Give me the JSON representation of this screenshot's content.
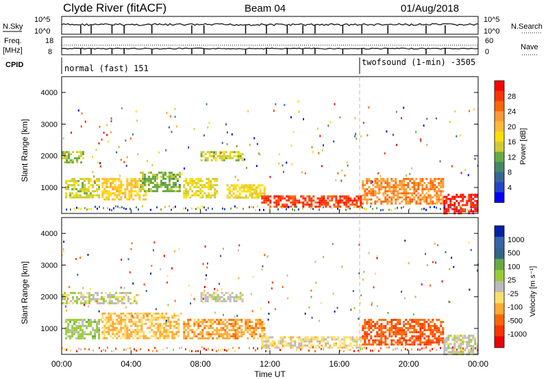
{
  "header": {
    "station": "Clyde River (fitACF)",
    "beam": "Beam 04",
    "date": "01/Aug/2018"
  },
  "aux_panels": {
    "nsky_label": "N.Sky",
    "nsky_ticks": [
      "10^5",
      "10^0"
    ],
    "nsearch_label": "N.Search",
    "nsearch_ticks": [
      "10^5",
      "10^0"
    ],
    "freq_label_1": "Freq.",
    "freq_label_2": "[MHz]",
    "freq_ticks": [
      "18",
      "8"
    ],
    "nave_label": "Nave",
    "nave_ticks": [
      "60",
      "0"
    ],
    "cpid_label": "CPID",
    "cpid_segments": [
      {
        "text": "normal (fast) 151",
        "start_hour": 0
      },
      {
        "text": "twofsound (1-min) -3505",
        "start_hour": 17.3
      }
    ]
  },
  "x_axis": {
    "label": "Time UT",
    "ticks": [
      "00:00",
      "04:00",
      "08:00",
      "12:00",
      "16:00",
      "20:00",
      "00:00"
    ]
  },
  "power_colorbar": {
    "label": "Power [dB]",
    "ticks": [
      "28",
      "24",
      "20",
      "16",
      "12",
      "8",
      "4"
    ],
    "colors": [
      "#ff0000",
      "#ff3300",
      "#ff6600",
      "#ff9933",
      "#ffbb33",
      "#ffdd00",
      "#cccc33",
      "#66aa44",
      "#448866",
      "#336699",
      "#2244cc",
      "#0000ff"
    ]
  },
  "velocity_colorbar": {
    "label": "Velocity [m s⁻¹]",
    "ticks": [
      "1000",
      "500",
      "100",
      "25",
      "-25",
      "-100",
      "-500",
      "-1000"
    ],
    "colors": [
      "#0022aa",
      "#3366aa",
      "#336688",
      "#66aa44",
      "#99cc33",
      "#bbbbbb",
      "#ffdd66",
      "#ffaa33",
      "#ff6600",
      "#ff3300",
      "#ee0000"
    ]
  },
  "chart_data": [
    {
      "type": "heatmap",
      "title": "Power",
      "xlabel": "Time UT",
      "ylabel": "Slant Range [km]",
      "xlim": [
        0,
        24
      ],
      "ylim": [
        180,
        4500
      ],
      "yticks": [
        "1000",
        "2000",
        "3000",
        "4000"
      ],
      "colorbar_range": [
        0,
        30
      ],
      "bands": [
        {
          "t0": 0.0,
          "t1": 1.2,
          "r0": 1800,
          "r1": 2150,
          "v": 13
        },
        {
          "t0": 0.2,
          "t1": 2.2,
          "r0": 700,
          "r1": 1300,
          "v": 14
        },
        {
          "t0": 2.3,
          "t1": 4.8,
          "r0": 650,
          "r1": 1300,
          "v": 18
        },
        {
          "t0": 4.5,
          "t1": 6.8,
          "r0": 900,
          "r1": 1500,
          "v": 12
        },
        {
          "t0": 7.0,
          "t1": 9.0,
          "r0": 700,
          "r1": 1300,
          "v": 15
        },
        {
          "t0": 8.0,
          "t1": 10.4,
          "r0": 1850,
          "r1": 2150,
          "v": 14
        },
        {
          "t0": 9.5,
          "t1": 11.7,
          "r0": 700,
          "r1": 1100,
          "v": 16
        },
        {
          "t0": 11.5,
          "t1": 17.3,
          "r0": 380,
          "r1": 750,
          "v": 26
        },
        {
          "t0": 17.3,
          "t1": 22.0,
          "r0": 500,
          "r1": 1300,
          "v": 22
        },
        {
          "t0": 22.0,
          "t1": 24.0,
          "r0": 200,
          "r1": 800,
          "v": 28
        }
      ]
    },
    {
      "type": "heatmap",
      "title": "Velocity",
      "xlabel": "Time UT",
      "ylabel": "Slant Range [km]",
      "xlim": [
        0,
        24
      ],
      "ylim": [
        180,
        4500
      ],
      "yticks": [
        "1000",
        "2000",
        "3000",
        "4000"
      ],
      "colorbar_range": [
        -1000,
        1000
      ],
      "bands": [
        {
          "t0": 0.0,
          "t1": 4.4,
          "r0": 1800,
          "r1": 2150,
          "v": 0
        },
        {
          "t0": 0.2,
          "t1": 2.2,
          "r0": 700,
          "r1": 1300,
          "v": 150
        },
        {
          "t0": 2.3,
          "t1": 6.8,
          "r0": 700,
          "r1": 1500,
          "v": -300
        },
        {
          "t0": 7.0,
          "t1": 11.7,
          "r0": 700,
          "r1": 1300,
          "v": -400
        },
        {
          "t0": 8.0,
          "t1": 10.4,
          "r0": 1850,
          "r1": 2150,
          "v": 0
        },
        {
          "t0": 11.5,
          "t1": 17.3,
          "r0": 380,
          "r1": 750,
          "v": -150
        },
        {
          "t0": 17.3,
          "t1": 22.0,
          "r0": 500,
          "r1": 1300,
          "v": -600
        },
        {
          "t0": 22.0,
          "t1": 24.0,
          "r0": 200,
          "r1": 800,
          "v": 0
        }
      ]
    }
  ]
}
